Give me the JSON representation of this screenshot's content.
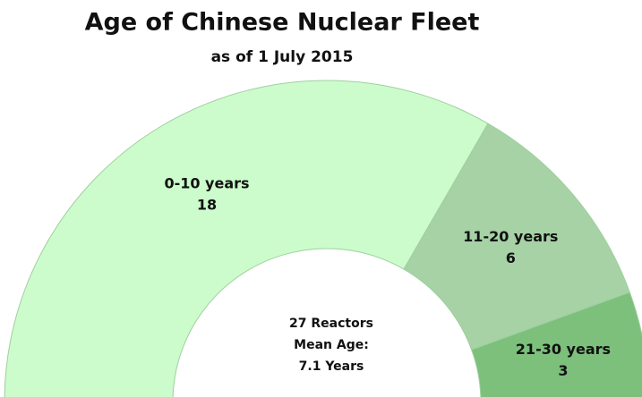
{
  "chart_data": {
    "type": "half-donut",
    "title": "Age of Chinese Nuclear Fleet",
    "subtitle": "as of 1 July 2015",
    "categories": [
      "0-10 years",
      "11-20 years",
      "21-30 years"
    ],
    "values": [
      18,
      6,
      3
    ],
    "colors": [
      "#ccfccc",
      "#a6d2a6",
      "#7cc07c"
    ],
    "center_label": [
      "27 Reactors",
      "Mean Age:",
      "7.1 Years"
    ]
  }
}
